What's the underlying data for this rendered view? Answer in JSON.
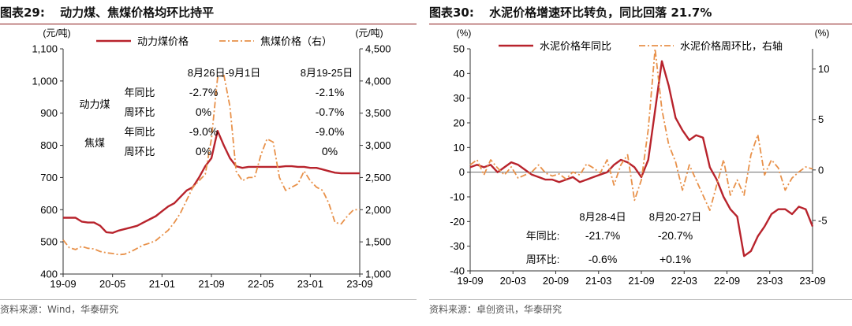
{
  "colors": {
    "accent": "#b8232c",
    "secondary": "#e8914a",
    "title_rule": "#8a1a1a"
  },
  "left": {
    "fig_label": "图表29:",
    "title": "动力煤、焦煤价格均环比持平",
    "source": "资料来源：Wind，华泰研究",
    "chart_data": {
      "type": "line",
      "y_unit_left": "(元/吨)",
      "y_unit_right": "(元/吨)",
      "ylim_left": [
        400,
        1100
      ],
      "ylim_right": [
        1000,
        4500
      ],
      "yticks_left": [
        "1,100",
        "1,000",
        "900",
        "800",
        "700",
        "600",
        "500",
        "400"
      ],
      "yticks_right": [
        "4,500",
        "4,000",
        "3,500",
        "3,000",
        "2,500",
        "2,000",
        "1,500",
        "1,000"
      ],
      "xticks": [
        "19-09",
        "20-05",
        "21-01",
        "21-09",
        "22-05",
        "23-01",
        "23-09"
      ],
      "series": [
        {
          "name": "动力煤价格",
          "axis": "left",
          "style": "solid",
          "points": [
            [
              0,
              575
            ],
            [
              1,
              575
            ],
            [
              2,
              575
            ],
            [
              3,
              563
            ],
            [
              4,
              560
            ],
            [
              5,
              560
            ],
            [
              6,
              550
            ],
            [
              7,
              530
            ],
            [
              8,
              528
            ],
            [
              9,
              535
            ],
            [
              10,
              540
            ],
            [
              11,
              545
            ],
            [
              12,
              550
            ],
            [
              13,
              560
            ],
            [
              14,
              570
            ],
            [
              15,
              580
            ],
            [
              16,
              595
            ],
            [
              17,
              610
            ],
            [
              18,
              620
            ],
            [
              19,
              640
            ],
            [
              20,
              660
            ],
            [
              21,
              670
            ],
            [
              22,
              700
            ],
            [
              23,
              735
            ],
            [
              24,
              760
            ],
            [
              25,
              845
            ],
            [
              26,
              800
            ],
            [
              27,
              760
            ],
            [
              28,
              735
            ],
            [
              29,
              730
            ],
            [
              30,
              733
            ],
            [
              31,
              733
            ],
            [
              32,
              733
            ],
            [
              33,
              733
            ],
            [
              34,
              733
            ],
            [
              35,
              733
            ],
            [
              36,
              735
            ],
            [
              37,
              735
            ],
            [
              38,
              733
            ],
            [
              39,
              733
            ],
            [
              40,
              730
            ],
            [
              41,
              730
            ],
            [
              42,
              725
            ],
            [
              43,
              720
            ],
            [
              44,
              715
            ],
            [
              45,
              713
            ],
            [
              46,
              713
            ],
            [
              47,
              713
            ],
            [
              48,
              713
            ]
          ]
        },
        {
          "name": "焦煤价格（右）",
          "axis": "right",
          "style": "dashdot",
          "points": [
            [
              0,
              1530
            ],
            [
              1,
              1410
            ],
            [
              2,
              1380
            ],
            [
              3,
              1430
            ],
            [
              4,
              1400
            ],
            [
              5,
              1390
            ],
            [
              6,
              1350
            ],
            [
              7,
              1330
            ],
            [
              8,
              1320
            ],
            [
              9,
              1300
            ],
            [
              10,
              1310
            ],
            [
              11,
              1350
            ],
            [
              12,
              1400
            ],
            [
              13,
              1450
            ],
            [
              14,
              1480
            ],
            [
              15,
              1520
            ],
            [
              16,
              1600
            ],
            [
              17,
              1680
            ],
            [
              18,
              1800
            ],
            [
              19,
              1950
            ],
            [
              20,
              2150
            ],
            [
              21,
              2350
            ],
            [
              22,
              2450
            ],
            [
              23,
              2550
            ],
            [
              24,
              3100
            ],
            [
              25,
              4050
            ],
            [
              26,
              4100
            ],
            [
              27,
              3600
            ],
            [
              28,
              2600
            ],
            [
              29,
              2450
            ],
            [
              30,
              2500
            ],
            [
              31,
              2500
            ],
            [
              32,
              2850
            ],
            [
              33,
              3100
            ],
            [
              34,
              3050
            ],
            [
              35,
              2500
            ],
            [
              36,
              2300
            ],
            [
              37,
              2350
            ],
            [
              38,
              2400
            ],
            [
              39,
              2600
            ],
            [
              40,
              2450
            ],
            [
              41,
              2350
            ],
            [
              42,
              2300
            ],
            [
              43,
              2100
            ],
            [
              44,
              1800
            ],
            [
              45,
              1780
            ],
            [
              46,
              1900
            ],
            [
              47,
              2000
            ],
            [
              48,
              2000
            ]
          ]
        }
      ],
      "annotations": {
        "header_1": "8月26日-9月1日",
        "header_2": "8月19-25日",
        "rows": [
          {
            "group": "动力煤",
            "metric": "年同比",
            "v1": "-2.7%",
            "v2": "-2.1%"
          },
          {
            "group": "",
            "metric": "周环比",
            "v1": "0%",
            "v2": "-0.7%"
          },
          {
            "group": "焦煤",
            "metric": "年同比",
            "v1": "-9.0%",
            "v2": "-9.0%"
          },
          {
            "group": "",
            "metric": "周环比",
            "v1": "0%",
            "v2": "0%"
          }
        ]
      }
    }
  },
  "right": {
    "fig_label": "图表30:",
    "title": "水泥价格增速环比转负，同比回落 21.7%",
    "source": "资料来源：卓创资讯，华泰研究",
    "chart_data": {
      "type": "line",
      "y_unit_left": "(%)",
      "y_unit_right": "(%)",
      "ylim_left": [
        -40,
        50
      ],
      "ylim_right": [
        -10,
        12
      ],
      "yticks_left": [
        "50",
        "40",
        "30",
        "20",
        "10",
        "0",
        "-10",
        "-20",
        "-30",
        "-40"
      ],
      "yticks_right": [
        "10",
        "5",
        "0",
        "-5"
      ],
      "xticks": [
        "19-09",
        "20-03",
        "20-09",
        "21-03",
        "21-09",
        "22-03",
        "22-09",
        "23-03",
        "23-09"
      ],
      "series": [
        {
          "name": "水泥价格年同比",
          "axis": "left",
          "style": "solid",
          "points": [
            [
              0,
              2
            ],
            [
              1,
              3
            ],
            [
              2,
              2
            ],
            [
              3,
              3
            ],
            [
              4,
              0
            ],
            [
              5,
              2
            ],
            [
              6,
              4
            ],
            [
              7,
              3
            ],
            [
              8,
              1
            ],
            [
              9,
              -1
            ],
            [
              10,
              -2
            ],
            [
              11,
              -3
            ],
            [
              12,
              -3
            ],
            [
              13,
              -4
            ],
            [
              14,
              -3
            ],
            [
              15,
              -2
            ],
            [
              16,
              -4
            ],
            [
              17,
              -3
            ],
            [
              18,
              -2
            ],
            [
              19,
              -1
            ],
            [
              20,
              0
            ],
            [
              21,
              3
            ],
            [
              22,
              5
            ],
            [
              23,
              4
            ],
            [
              24,
              2
            ],
            [
              25,
              -2
            ],
            [
              26,
              5
            ],
            [
              27,
              25
            ],
            [
              28,
              45
            ],
            [
              29,
              35
            ],
            [
              30,
              22
            ],
            [
              31,
              17
            ],
            [
              32,
              13
            ],
            [
              33,
              15
            ],
            [
              34,
              14
            ],
            [
              35,
              2
            ],
            [
              36,
              -3
            ],
            [
              37,
              -10
            ],
            [
              38,
              -15
            ],
            [
              39,
              -18
            ],
            [
              40,
              -34
            ],
            [
              41,
              -32
            ],
            [
              42,
              -26
            ],
            [
              43,
              -22
            ],
            [
              44,
              -17
            ],
            [
              45,
              -15
            ],
            [
              46,
              -15
            ],
            [
              47,
              -17
            ],
            [
              48,
              -14
            ],
            [
              49,
              -15
            ],
            [
              50,
              -22
            ]
          ]
        },
        {
          "name": "水泥价格周环比，右轴",
          "axis": "right",
          "style": "dashdot",
          "points": [
            [
              0,
              0.5
            ],
            [
              1,
              1.0
            ],
            [
              2,
              -0.5
            ],
            [
              3,
              1.0
            ],
            [
              4,
              0.2
            ],
            [
              5,
              -0.5
            ],
            [
              6,
              0.3
            ],
            [
              7,
              -0.8
            ],
            [
              8,
              -0.5
            ],
            [
              9,
              -0.2
            ],
            [
              10,
              0.5
            ],
            [
              11,
              -0.3
            ],
            [
              12,
              -0.6
            ],
            [
              13,
              -0.4
            ],
            [
              14,
              -0.9
            ],
            [
              15,
              -0.2
            ],
            [
              16,
              -0.5
            ],
            [
              17,
              0.6
            ],
            [
              18,
              0.2
            ],
            [
              19,
              -0.3
            ],
            [
              20,
              1.0
            ],
            [
              21,
              -1.5
            ],
            [
              22,
              0.5
            ],
            [
              23,
              1.5
            ],
            [
              24,
              -3.0
            ],
            [
              25,
              -1.0
            ],
            [
              26,
              4.0
            ],
            [
              27,
              12.0
            ],
            [
              28,
              6.0
            ],
            [
              29,
              2.5
            ],
            [
              30,
              0.8
            ],
            [
              31,
              -2.0
            ],
            [
              32,
              0.5
            ],
            [
              33,
              -1.0
            ],
            [
              34,
              -2.5
            ],
            [
              35,
              -4.0
            ],
            [
              36,
              -1.5
            ],
            [
              37,
              1.0
            ],
            [
              38,
              -2.5
            ],
            [
              39,
              -1.0
            ],
            [
              40,
              -2.5
            ],
            [
              41,
              1.5
            ],
            [
              42,
              3.5
            ],
            [
              43,
              -0.5
            ],
            [
              44,
              1.0
            ],
            [
              45,
              0.2
            ],
            [
              46,
              -2.0
            ],
            [
              47,
              -0.8
            ],
            [
              48,
              -0.2
            ],
            [
              49,
              0.3
            ],
            [
              50,
              0.1
            ]
          ]
        }
      ],
      "annotations": {
        "header_1": "8月28-4日",
        "header_2": "8月20-27日",
        "rows": [
          {
            "metric": "年同比:",
            "v1": "-21.7%",
            "v2": "-20.7%"
          },
          {
            "metric": "周环比:",
            "v1": "-0.6%",
            "v2": "+0.1%"
          }
        ]
      }
    }
  }
}
